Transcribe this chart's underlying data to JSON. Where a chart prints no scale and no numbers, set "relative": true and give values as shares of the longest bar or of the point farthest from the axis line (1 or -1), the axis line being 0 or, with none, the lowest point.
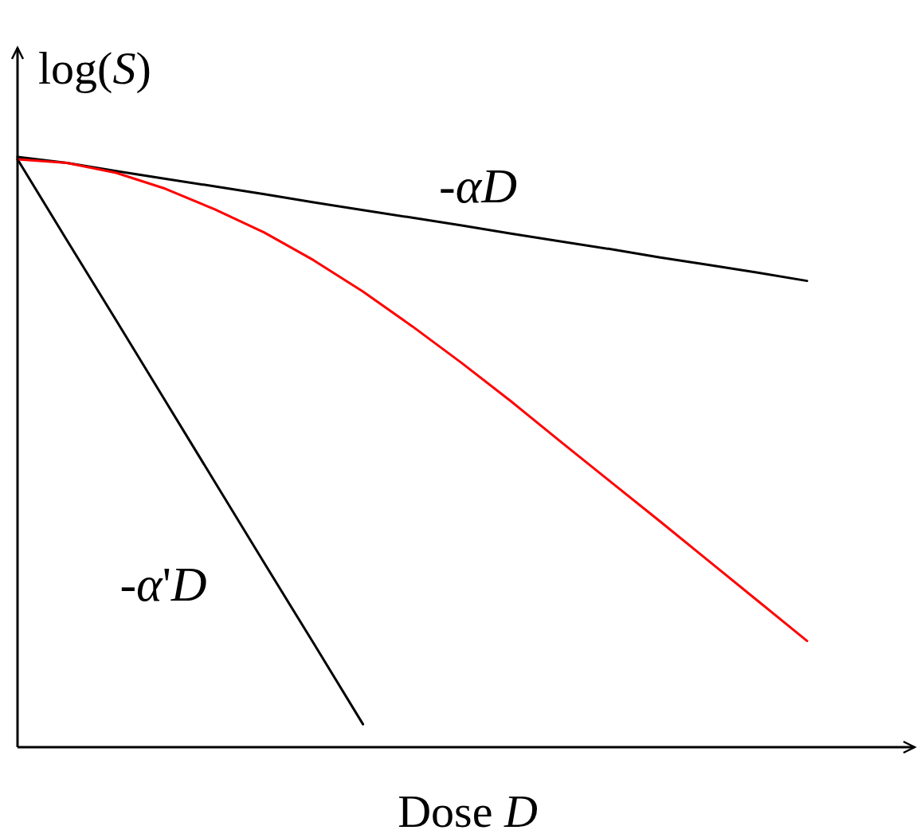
{
  "chart_data": {
    "type": "line",
    "relative": true,
    "xlabel": "Dose D",
    "ylabel": "log(S)",
    "marker": "none",
    "line_style": "solid",
    "categories": [
      null,
      null,
      null,
      null,
      null,
      null,
      null,
      null,
      null,
      null,
      null,
      null,
      null,
      null,
      null,
      null,
      null
    ],
    "series": [
      {
        "color": "#000000",
        "values": [
          1.0,
          0.99,
          0.976,
          0.963,
          0.95,
          0.937,
          0.923,
          0.91,
          0.897,
          0.884,
          0.87,
          0.857,
          0.844,
          0.83,
          0.817,
          0.804,
          0.79
        ]
      },
      {
        "color": "#000000",
        "values": [
          0.996,
          0.859,
          0.723,
          0.586,
          0.449,
          0.312,
          0.176,
          0.039,
          null,
          null,
          null,
          null,
          null,
          null,
          null,
          null,
          null
        ]
      },
      {
        "color": "#ff0000",
        "values": [
          0.996,
          0.99,
          0.973,
          0.946,
          0.911,
          0.872,
          0.825,
          0.772,
          0.713,
          0.651,
          0.586,
          0.518,
          0.451,
          0.384,
          0.316,
          0.248,
          0.18
        ]
      }
    ],
    "annotations": [
      "-αD",
      "-α'D"
    ]
  }
}
